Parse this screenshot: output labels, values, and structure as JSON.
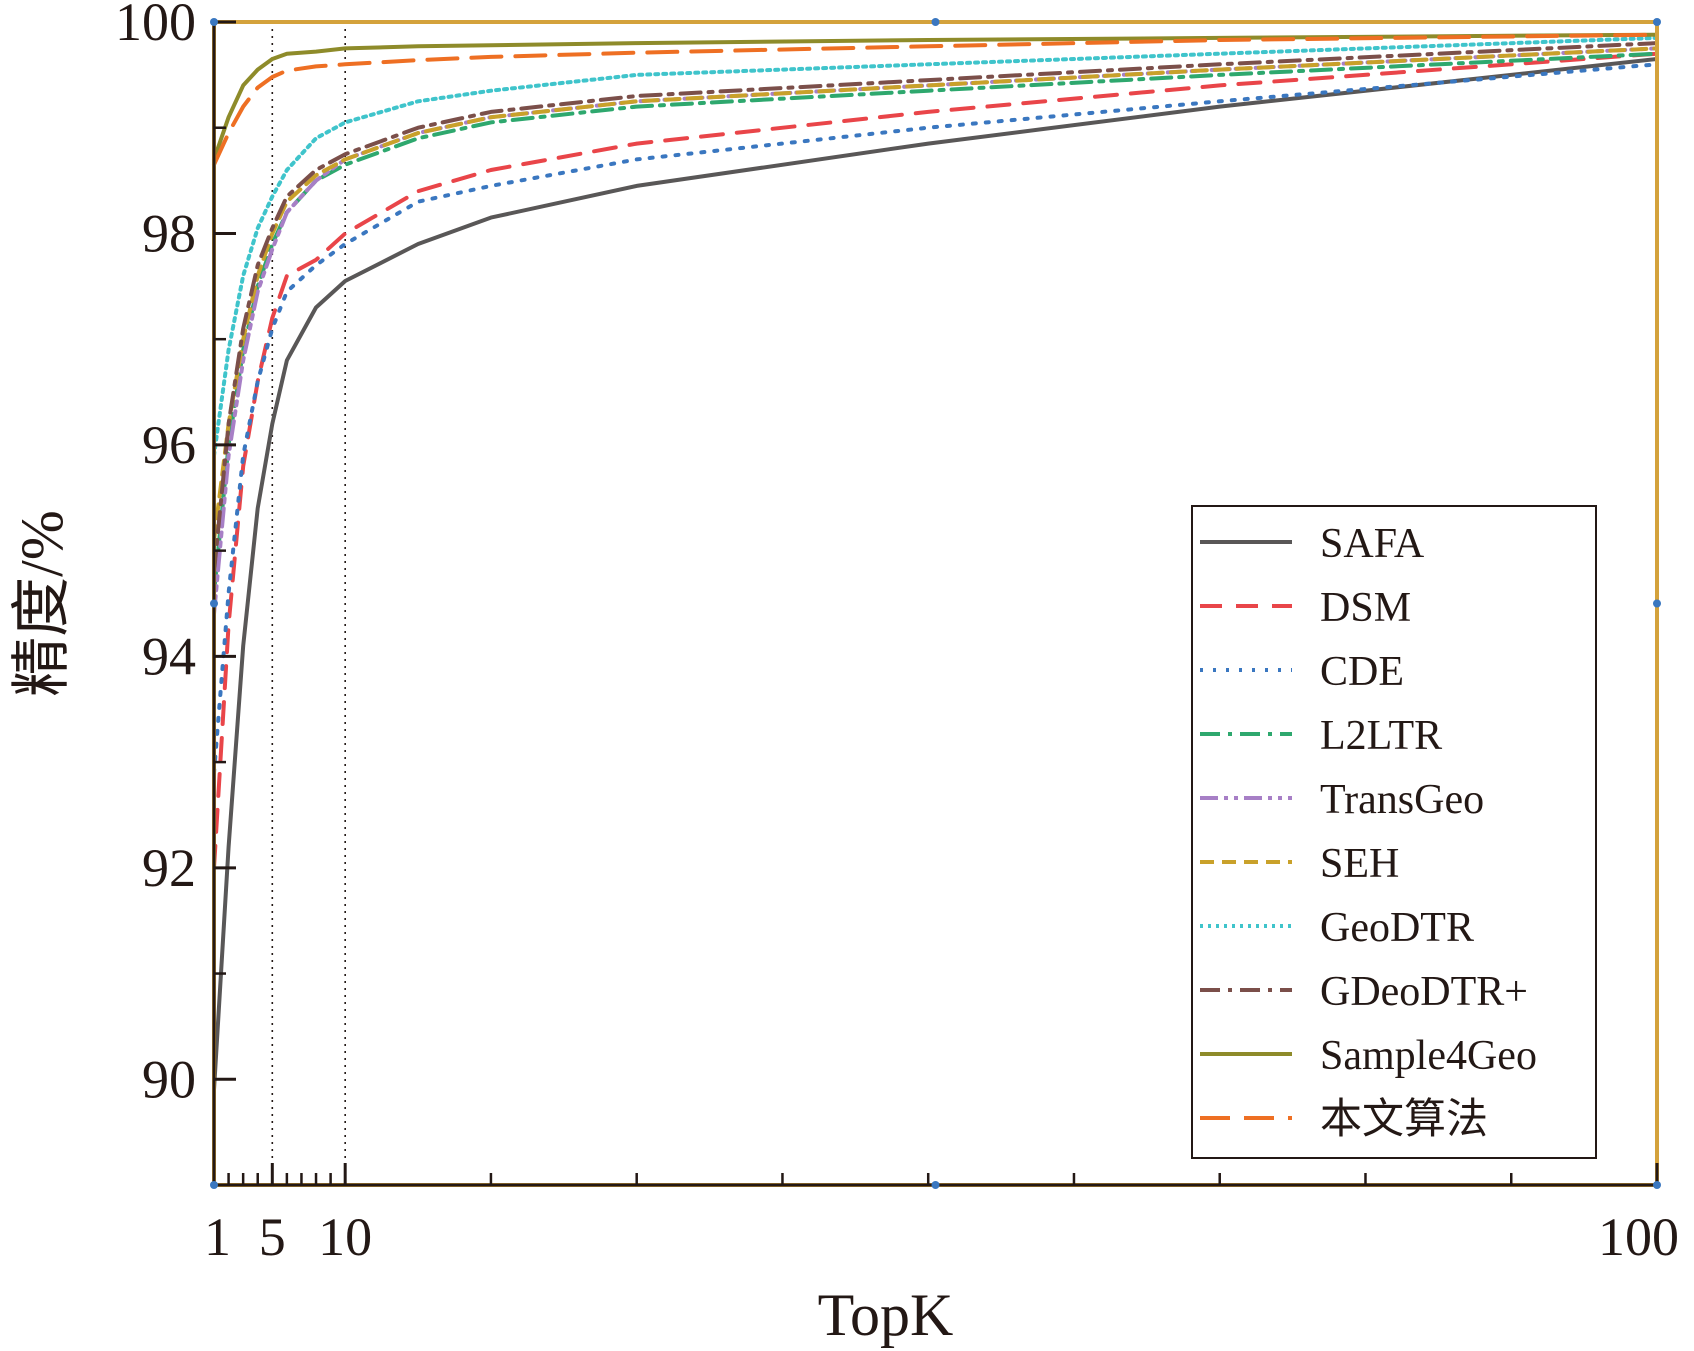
{
  "chart_data": {
    "type": "line",
    "xlabel": "TopK",
    "ylabel": "精度/%",
    "xlim": [
      1,
      100
    ],
    "ylim": [
      89,
      100
    ],
    "xticks": [
      1,
      5,
      10,
      100
    ],
    "yticks": [
      90,
      92,
      94,
      96,
      98,
      100
    ],
    "reference_lines_x": [
      5,
      10
    ],
    "grid": false,
    "legend_position": "bottom-right",
    "series": [
      {
        "name": "SAFA",
        "color": "#595757",
        "dash": "solid",
        "x": [
          1,
          2,
          3,
          4,
          5,
          6,
          8,
          10,
          15,
          20,
          30,
          50,
          70,
          100
        ],
        "y": [
          89.9,
          92.2,
          94.1,
          95.4,
          96.2,
          96.8,
          97.3,
          97.55,
          97.9,
          98.15,
          98.45,
          98.85,
          99.2,
          99.65
        ]
      },
      {
        "name": "DSM",
        "color": "#e94549",
        "dash": "dashed",
        "x": [
          1,
          2,
          3,
          4,
          5,
          6,
          8,
          10,
          15,
          20,
          30,
          50,
          70,
          100
        ],
        "y": [
          92.0,
          94.3,
          95.8,
          96.6,
          97.2,
          97.6,
          97.75,
          98.0,
          98.4,
          98.6,
          98.85,
          99.15,
          99.4,
          99.7
        ]
      },
      {
        "name": "CDE",
        "color": "#3a77c0",
        "dash": "dotted",
        "x": [
          1,
          2,
          3,
          4,
          5,
          6,
          8,
          10,
          15,
          20,
          30,
          50,
          70,
          100
        ],
        "y": [
          92.9,
          94.6,
          95.9,
          96.6,
          97.1,
          97.45,
          97.7,
          97.9,
          98.3,
          98.45,
          98.7,
          99.0,
          99.25,
          99.6
        ]
      },
      {
        "name": "L2LTR",
        "color": "#2ea86e",
        "dash": "dashdot",
        "x": [
          1,
          2,
          3,
          4,
          5,
          6,
          8,
          10,
          15,
          20,
          30,
          50,
          70,
          100
        ],
        "y": [
          94.6,
          96.0,
          96.9,
          97.5,
          97.9,
          98.2,
          98.5,
          98.65,
          98.9,
          99.05,
          99.2,
          99.35,
          99.5,
          99.7
        ]
      },
      {
        "name": "TransGeo",
        "color": "#a77fc6",
        "dash": "dashdotdot",
        "x": [
          1,
          2,
          3,
          4,
          5,
          6,
          8,
          10,
          15,
          20,
          30,
          50,
          70,
          100
        ],
        "y": [
          94.4,
          95.9,
          96.8,
          97.45,
          97.85,
          98.2,
          98.5,
          98.7,
          98.95,
          99.1,
          99.25,
          99.4,
          99.55,
          99.75
        ]
      },
      {
        "name": "SEH",
        "color": "#c9a12a",
        "dash": "shortdash",
        "x": [
          1,
          2,
          3,
          4,
          5,
          6,
          8,
          10,
          15,
          20,
          30,
          50,
          70,
          100
        ],
        "y": [
          95.1,
          96.2,
          97.0,
          97.6,
          98.0,
          98.3,
          98.55,
          98.7,
          98.95,
          99.1,
          99.25,
          99.4,
          99.55,
          99.75
        ]
      },
      {
        "name": "GeoDTR",
        "color": "#3fc4cb",
        "dash": "densedot",
        "x": [
          1,
          2,
          3,
          4,
          5,
          6,
          8,
          10,
          15,
          20,
          30,
          50,
          70,
          100
        ],
        "y": [
          95.9,
          96.9,
          97.6,
          98.05,
          98.35,
          98.6,
          98.9,
          99.05,
          99.25,
          99.35,
          99.5,
          99.6,
          99.7,
          99.85
        ]
      },
      {
        "name": "GDeoDTR+",
        "color": "#7b4f4a",
        "dash": "dashdot",
        "x": [
          1,
          2,
          3,
          4,
          5,
          6,
          8,
          10,
          15,
          20,
          30,
          50,
          70,
          100
        ],
        "y": [
          94.8,
          96.2,
          97.1,
          97.7,
          98.05,
          98.35,
          98.6,
          98.75,
          99.0,
          99.15,
          99.3,
          99.45,
          99.6,
          99.8
        ]
      },
      {
        "name": "Sample4Geo",
        "color": "#8e8b2a",
        "dash": "solid",
        "x": [
          1,
          2,
          3,
          4,
          5,
          6,
          8,
          10,
          15,
          20,
          30,
          50,
          70,
          100
        ],
        "y": [
          98.7,
          99.1,
          99.4,
          99.55,
          99.65,
          99.7,
          99.72,
          99.75,
          99.77,
          99.78,
          99.8,
          99.83,
          99.85,
          99.88
        ]
      },
      {
        "name": "本文算法",
        "color": "#ee6f23",
        "dash": "longdash",
        "x": [
          1,
          2,
          3,
          4,
          5,
          6,
          8,
          10,
          15,
          20,
          30,
          50,
          70,
          100
        ],
        "y": [
          98.65,
          98.95,
          99.2,
          99.38,
          99.48,
          99.54,
          99.58,
          99.6,
          99.64,
          99.67,
          99.71,
          99.77,
          99.83,
          99.88
        ]
      }
    ]
  },
  "colors": {
    "frame": "#d4a23c",
    "axis": "#231815",
    "background": "#ffffff"
  }
}
